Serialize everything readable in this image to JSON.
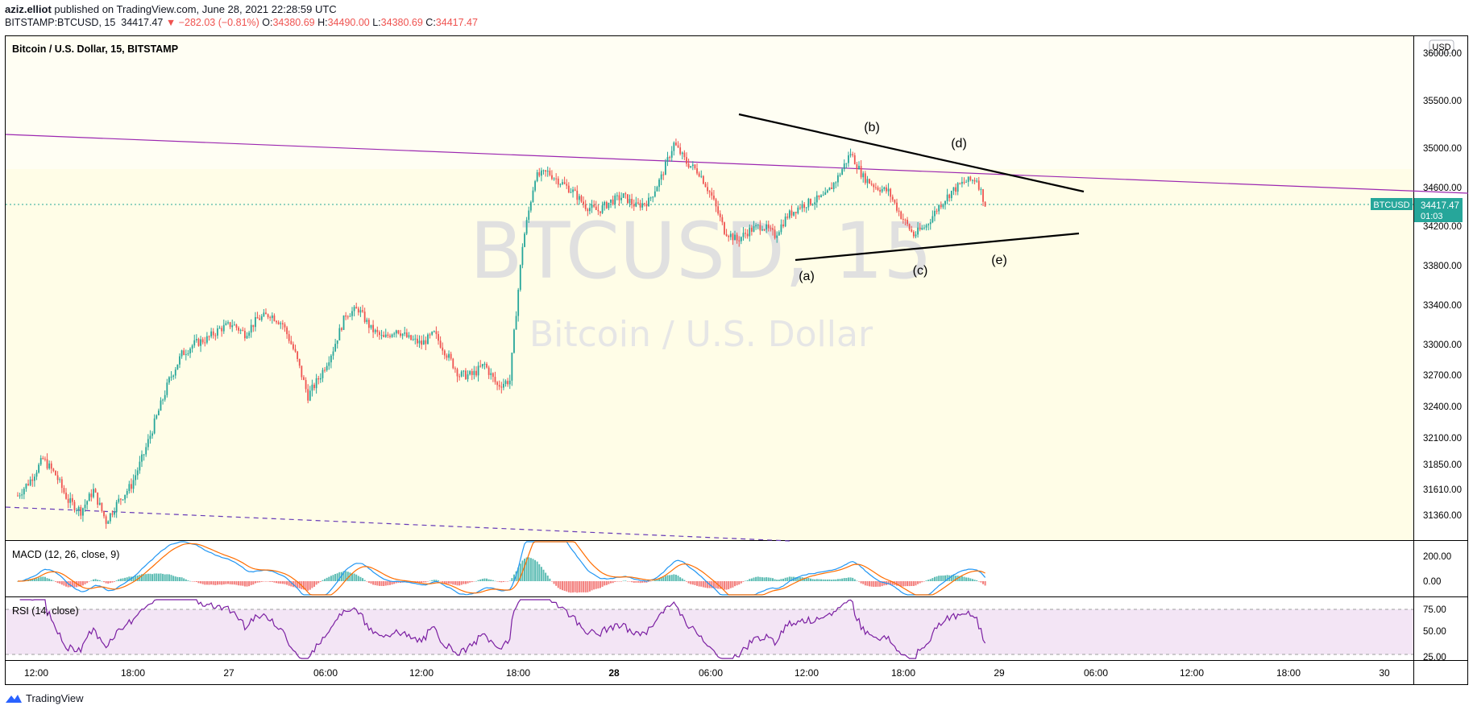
{
  "publisher": {
    "user": "aziz.elliot",
    "text": "published on TradingView.com, June 28, 2021 22:28:59 UTC"
  },
  "quote_line": {
    "symbol": "BITSTAMP:BTCUSD, 15",
    "price": "34417.47",
    "change": "▼ −282.03 (−0.81%)",
    "o_label": "O:",
    "o": "34380.69",
    "h_label": "H:",
    "h": "34490.00",
    "l_label": "L:",
    "l": "34380.69",
    "c_label": "C:",
    "c": "34417.47"
  },
  "chart": {
    "legend": "Bitcoin / U.S. Dollar, 15, BITSTAMP",
    "watermark_symbol": "BTCUSD, 15",
    "watermark_name": "Bitcoin / U.S. Dollar",
    "currency": "USD",
    "price_tag": {
      "symbol": "BTCUSD",
      "price": "34417.47",
      "countdown": "01:03"
    },
    "price_labels": [
      "36000.00",
      "35500.00",
      "35000.00",
      "34600.00",
      "34200.00",
      "33800.00",
      "33400.00",
      "33000.00",
      "32700.00",
      "32400.00",
      "32100.00",
      "31850.00",
      "31610.00",
      "31360.00"
    ],
    "wave_labels": [
      "(a)",
      "(b)",
      "(c)",
      "(d)",
      "(e)"
    ],
    "colors": {
      "up": "#26a69a",
      "down": "#ef5350",
      "trend": "#9c27b0",
      "bg": "#fffde7"
    }
  },
  "macd": {
    "legend": "MACD (12, 26, close, 9)",
    "labels": [
      "200.00",
      "0.00"
    ]
  },
  "rsi": {
    "legend": "RSI (14, close)",
    "labels": [
      "75.00",
      "50.00",
      "25.00"
    ]
  },
  "time_axis": [
    "12:00",
    "18:00",
    "27",
    "06:00",
    "12:00",
    "18:00",
    "28",
    "06:00",
    "12:00",
    "18:00",
    "29",
    "06:00",
    "12:00",
    "18:00",
    "30"
  ],
  "footer": {
    "brand": "TradingView"
  },
  "chart_data": {
    "type": "candlestick",
    "symbol": "BITSTAMP:BTCUSD",
    "interval": "15",
    "last_close": 34417.47,
    "x_ticks": [
      "12:00",
      "18:00",
      "27",
      "06:00",
      "12:00",
      "18:00",
      "28",
      "06:00",
      "12:00",
      "18:00",
      "29",
      "06:00",
      "12:00",
      "18:00",
      "30"
    ],
    "y_ticks": [
      36000,
      35500,
      35000,
      34600,
      34200,
      33800,
      33400,
      33000,
      32700,
      32400,
      32100,
      31850,
      31610,
      31360
    ],
    "close_path": [
      [
        0,
        31550
      ],
      [
        6,
        31700
      ],
      [
        12,
        31900
      ],
      [
        18,
        31750
      ],
      [
        24,
        31500
      ],
      [
        30,
        31400
      ],
      [
        36,
        31600
      ],
      [
        42,
        31300
      ],
      [
        48,
        31500
      ],
      [
        54,
        31650
      ],
      [
        60,
        31950
      ],
      [
        66,
        32300
      ],
      [
        72,
        32650
      ],
      [
        78,
        32900
      ],
      [
        84,
        33000
      ],
      [
        90,
        33050
      ],
      [
        96,
        33150
      ],
      [
        102,
        33200
      ],
      [
        108,
        33100
      ],
      [
        114,
        33250
      ],
      [
        120,
        33300
      ],
      [
        126,
        33200
      ],
      [
        132,
        32900
      ],
      [
        138,
        32500
      ],
      [
        144,
        32700
      ],
      [
        150,
        32950
      ],
      [
        156,
        33300
      ],
      [
        162,
        33350
      ],
      [
        168,
        33150
      ],
      [
        174,
        33050
      ],
      [
        180,
        33150
      ],
      [
        186,
        33050
      ],
      [
        192,
        33000
      ],
      [
        198,
        33100
      ],
      [
        204,
        32900
      ],
      [
        210,
        32700
      ],
      [
        216,
        32700
      ],
      [
        222,
        32800
      ],
      [
        228,
        32600
      ],
      [
        234,
        32650
      ],
      [
        240,
        34000
      ],
      [
        246,
        34700
      ],
      [
        252,
        34750
      ],
      [
        258,
        34650
      ],
      [
        264,
        34550
      ],
      [
        270,
        34400
      ],
      [
        276,
        34350
      ],
      [
        282,
        34450
      ],
      [
        288,
        34500
      ],
      [
        294,
        34400
      ],
      [
        300,
        34450
      ],
      [
        306,
        34700
      ],
      [
        312,
        35050
      ],
      [
        318,
        34850
      ],
      [
        324,
        34750
      ],
      [
        330,
        34500
      ],
      [
        336,
        34150
      ],
      [
        342,
        34050
      ],
      [
        348,
        34150
      ],
      [
        354,
        34200
      ],
      [
        360,
        34100
      ],
      [
        366,
        34300
      ],
      [
        372,
        34400
      ],
      [
        378,
        34450
      ],
      [
        384,
        34500
      ],
      [
        390,
        34700
      ],
      [
        396,
        34950
      ],
      [
        402,
        34700
      ],
      [
        408,
        34600
      ],
      [
        414,
        34550
      ],
      [
        420,
        34300
      ],
      [
        426,
        34100
      ],
      [
        432,
        34200
      ],
      [
        438,
        34400
      ],
      [
        444,
        34550
      ],
      [
        450,
        34650
      ],
      [
        456,
        34680
      ],
      [
        460,
        34417.47
      ]
    ]
  }
}
